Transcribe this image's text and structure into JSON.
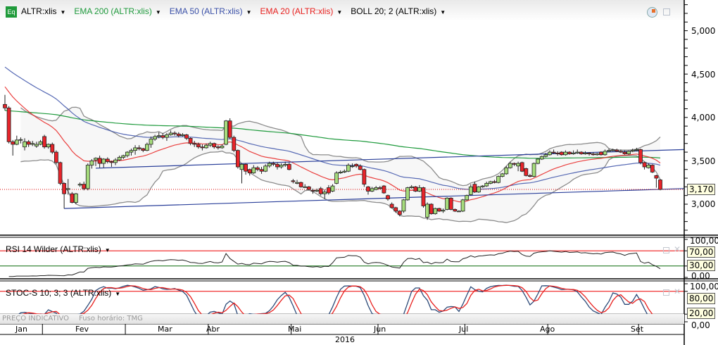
{
  "legend": {
    "symbol": "ALTR:xlis",
    "symbol_icon": "Eq",
    "ema200": "EMA 200 (ALTR:xlis)",
    "ema50": "EMA 50 (ALTR:xlis)",
    "ema20": "EMA 20 (ALTR:xlis)",
    "boll": "BOLL 20; 2 (ALTR:xlis)"
  },
  "colors": {
    "ema200": "#1e9a3c",
    "ema50": "#3a50a8",
    "ema20": "#e8201e",
    "boll": "#8c8c8c",
    "up": "#a6dc7c",
    "down": "#e8242a",
    "trendline": "#2a3f9a",
    "stoch_k": "#2c4a78",
    "stoch_d": "#e8201e"
  },
  "icons": {
    "top_right": [
      "clock-icon",
      "restore-window-icon"
    ],
    "panel": [
      "restore-window-icon",
      "close-icon"
    ]
  },
  "price_axis": {
    "labels": [
      "5,000",
      "4,500",
      "4,000",
      "3,500",
      "3,000"
    ],
    "last_price": "3,170"
  },
  "rsi": {
    "title": "RSI 14 Wilder (ALTR:xlis)",
    "axis": [
      "100,00",
      "70,00",
      "30,00",
      "0,00"
    ]
  },
  "stoch": {
    "title": "STOC-S 10; 3; 3 (ALTR:xlis)",
    "axis": [
      "100,00",
      "80,00",
      "20,00",
      "0,00"
    ]
  },
  "footer": {
    "indicative": "PREÇO INDICATIVO",
    "timezone": "Fuso horário: TMG"
  },
  "x_axis": {
    "months": [
      "Jan",
      "Fev",
      "Mar",
      "Abr",
      "Mai",
      "Jun",
      "Jul",
      "Ago",
      "Set"
    ],
    "year": "2016"
  },
  "chart_data": {
    "type": "candlestick",
    "title": "",
    "y_range": [
      2650,
      5300
    ],
    "month_candle_counts": [
      10,
      21,
      21,
      21,
      22,
      22,
      21,
      23,
      6
    ],
    "last": 3170,
    "indicator_start": {
      "ema20": 4380,
      "ema50": 4600,
      "ema200": 4080
    },
    "trendlines": [
      {
        "from_index": 23,
        "from_price": 3415,
        "to_price_at_right": 3630
      },
      {
        "from_index": 15,
        "from_price": 2950,
        "to_price_at_right": 3180
      }
    ],
    "rsi_levels": [
      70,
      30
    ],
    "stoch_levels": [
      80,
      20
    ],
    "candles": [
      [
        4150,
        4260,
        4080,
        4110
      ],
      [
        4110,
        4130,
        3700,
        3720
      ],
      [
        3720,
        3740,
        3560,
        3690
      ],
      [
        3690,
        3790,
        3680,
        3740
      ],
      [
        3740,
        3770,
        3700,
        3745
      ],
      [
        3660,
        3760,
        3620,
        3720
      ],
      [
        3720,
        3740,
        3660,
        3690
      ],
      [
        3690,
        3730,
        3670,
        3700
      ],
      [
        3670,
        3720,
        3650,
        3690
      ],
      [
        3690,
        3740,
        3680,
        3720
      ],
      [
        3780,
        3800,
        3640,
        3660
      ],
      [
        3660,
        3700,
        3640,
        3690
      ],
      [
        3690,
        3710,
        3580,
        3600
      ],
      [
        3600,
        3620,
        3460,
        3480
      ],
      [
        3480,
        3490,
        3220,
        3240
      ],
      [
        3240,
        3250,
        2950,
        3120
      ],
      [
        3170,
        3290,
        3110,
        3180
      ],
      [
        3120,
        3140,
        3010,
        3020
      ],
      [
        3020,
        3130,
        3000,
        3120
      ],
      [
        3220,
        3250,
        3200,
        3230
      ],
      [
        3230,
        3260,
        3160,
        3180
      ],
      [
        3180,
        3470,
        3160,
        3450
      ],
      [
        3450,
        3520,
        3410,
        3500
      ],
      [
        3510,
        3540,
        3440,
        3530
      ],
      [
        3530,
        3560,
        3420,
        3470
      ],
      [
        3470,
        3530,
        3420,
        3520
      ],
      [
        3520,
        3540,
        3470,
        3490
      ],
      [
        3490,
        3500,
        3430,
        3480
      ],
      [
        3480,
        3530,
        3450,
        3510
      ],
      [
        3510,
        3560,
        3500,
        3540
      ],
      [
        3540,
        3570,
        3520,
        3560
      ],
      [
        3560,
        3610,
        3540,
        3600
      ],
      [
        3600,
        3640,
        3560,
        3620
      ],
      [
        3620,
        3680,
        3570,
        3650
      ],
      [
        3650,
        3680,
        3620,
        3640
      ],
      [
        3640,
        3650,
        3600,
        3620
      ],
      [
        3620,
        3710,
        3610,
        3690
      ],
      [
        3690,
        3780,
        3650,
        3750
      ],
      [
        3750,
        3800,
        3730,
        3780
      ],
      [
        3780,
        3830,
        3760,
        3790
      ],
      [
        3790,
        3820,
        3750,
        3770
      ],
      [
        3770,
        3820,
        3730,
        3800
      ],
      [
        3800,
        3850,
        3790,
        3820
      ],
      [
        3820,
        3840,
        3790,
        3810
      ],
      [
        3810,
        3830,
        3770,
        3790
      ],
      [
        3790,
        3820,
        3780,
        3800
      ],
      [
        3800,
        3810,
        3740,
        3760
      ],
      [
        3760,
        3770,
        3680,
        3700
      ],
      [
        3700,
        3730,
        3660,
        3690
      ],
      [
        3690,
        3710,
        3640,
        3660
      ],
      [
        3660,
        3690,
        3620,
        3650
      ],
      [
        3650,
        3700,
        3640,
        3680
      ],
      [
        3680,
        3720,
        3660,
        3700
      ],
      [
        3700,
        3710,
        3640,
        3660
      ],
      [
        3660,
        3680,
        3630,
        3650
      ],
      [
        3650,
        3690,
        3640,
        3670
      ],
      [
        3690,
        3970,
        3680,
        3960
      ],
      [
        3960,
        3990,
        3750,
        3770
      ],
      [
        3770,
        3790,
        3600,
        3620
      ],
      [
        3620,
        3630,
        3410,
        3430
      ],
      [
        3400,
        3470,
        3240,
        3460
      ],
      [
        3460,
        3470,
        3340,
        3380
      ],
      [
        3400,
        3410,
        3330,
        3360
      ],
      [
        3360,
        3450,
        3350,
        3420
      ],
      [
        3420,
        3440,
        3380,
        3400
      ],
      [
        3400,
        3430,
        3350,
        3380
      ],
      [
        3380,
        3460,
        3370,
        3440
      ],
      [
        3440,
        3490,
        3420,
        3470
      ],
      [
        3470,
        3490,
        3440,
        3460
      ],
      [
        3460,
        3480,
        3400,
        3430
      ],
      [
        3430,
        3470,
        3410,
        3450
      ],
      [
        3450,
        3490,
        3430,
        3460
      ],
      [
        3460,
        3480,
        3390,
        3400
      ],
      [
        3270,
        3290,
        3240,
        3260
      ],
      [
        3240,
        3280,
        3230,
        3250
      ],
      [
        3250,
        3260,
        3190,
        3200
      ],
      [
        3200,
        3230,
        3190,
        3200
      ],
      [
        3200,
        3210,
        3160,
        3170
      ],
      [
        3160,
        3180,
        3120,
        3150
      ],
      [
        3150,
        3180,
        3140,
        3160
      ],
      [
        3180,
        3200,
        3100,
        3120
      ],
      [
        3120,
        3170,
        3060,
        3140
      ],
      [
        3190,
        3220,
        3110,
        3130
      ],
      [
        3150,
        3230,
        3140,
        3210
      ],
      [
        3240,
        3380,
        3230,
        3360
      ],
      [
        3360,
        3390,
        3350,
        3370
      ],
      [
        3370,
        3400,
        3360,
        3380
      ],
      [
        3380,
        3470,
        3370,
        3450
      ],
      [
        3440,
        3470,
        3420,
        3440
      ],
      [
        3460,
        3470,
        3420,
        3440
      ],
      [
        3440,
        3460,
        3390,
        3400
      ],
      [
        3400,
        3410,
        3200,
        3230
      ],
      [
        3200,
        3210,
        3110,
        3150
      ],
      [
        3150,
        3200,
        3140,
        3180
      ],
      [
        3170,
        3210,
        3160,
        3190
      ],
      [
        3190,
        3210,
        3170,
        3180
      ],
      [
        3210,
        3220,
        3120,
        3130
      ],
      [
        3100,
        3110,
        3040,
        3060
      ],
      [
        3000,
        3020,
        2950,
        2960
      ],
      [
        2960,
        2970,
        2900,
        2920
      ],
      [
        2920,
        2930,
        2860,
        2880
      ],
      [
        2920,
        3060,
        2900,
        3050
      ],
      [
        3050,
        3200,
        3040,
        3190
      ],
      [
        3190,
        3220,
        3180,
        3200
      ],
      [
        3200,
        3210,
        3140,
        3150
      ],
      [
        3150,
        3220,
        3140,
        3190
      ],
      [
        3190,
        3200,
        2960,
        2980
      ],
      [
        2850,
        3020,
        2820,
        3000
      ],
      [
        3000,
        3010,
        2880,
        2890
      ],
      [
        2890,
        2960,
        2880,
        2950
      ],
      [
        2950,
        2960,
        2910,
        2920
      ],
      [
        2920,
        2950,
        2900,
        2930
      ],
      [
        2940,
        3080,
        2930,
        3070
      ],
      [
        3070,
        3080,
        2930,
        2940
      ],
      [
        2940,
        2950,
        2910,
        2920
      ],
      [
        2920,
        2930,
        2910,
        2920
      ],
      [
        2920,
        3060,
        2910,
        3050
      ],
      [
        3050,
        3110,
        3040,
        3100
      ],
      [
        3110,
        3230,
        3100,
        3200
      ],
      [
        3230,
        3260,
        3130,
        3140
      ],
      [
        3140,
        3210,
        3130,
        3200
      ],
      [
        3200,
        3220,
        3190,
        3210
      ],
      [
        3210,
        3260,
        3200,
        3240
      ],
      [
        3240,
        3270,
        3230,
        3260
      ],
      [
        3260,
        3280,
        3240,
        3250
      ],
      [
        3250,
        3330,
        3240,
        3320
      ],
      [
        3320,
        3360,
        3310,
        3350
      ],
      [
        3350,
        3440,
        3340,
        3420
      ],
      [
        3420,
        3490,
        3410,
        3470
      ],
      [
        3470,
        3480,
        3440,
        3460
      ],
      [
        3440,
        3490,
        3380,
        3470
      ],
      [
        3480,
        3490,
        3370,
        3380
      ],
      [
        3410,
        3420,
        3320,
        3330
      ],
      [
        3330,
        3350,
        3310,
        3320
      ],
      [
        3320,
        3480,
        3310,
        3470
      ],
      [
        3470,
        3530,
        3460,
        3520
      ],
      [
        3520,
        3560,
        3510,
        3550
      ],
      [
        3550,
        3590,
        3540,
        3570
      ],
      [
        3570,
        3620,
        3560,
        3600
      ],
      [
        3600,
        3630,
        3580,
        3590
      ],
      [
        3590,
        3610,
        3560,
        3580
      ],
      [
        3600,
        3610,
        3560,
        3570
      ],
      [
        3570,
        3620,
        3560,
        3600
      ],
      [
        3600,
        3610,
        3570,
        3580
      ],
      [
        3580,
        3620,
        3570,
        3590
      ],
      [
        3590,
        3630,
        3580,
        3600
      ],
      [
        3600,
        3610,
        3570,
        3580
      ],
      [
        3580,
        3610,
        3570,
        3590
      ],
      [
        3590,
        3600,
        3560,
        3580
      ],
      [
        3580,
        3600,
        3560,
        3570
      ],
      [
        3570,
        3590,
        3560,
        3580
      ],
      [
        3600,
        3610,
        3560,
        3570
      ],
      [
        3570,
        3630,
        3560,
        3610
      ],
      [
        3610,
        3640,
        3600,
        3620
      ],
      [
        3620,
        3640,
        3610,
        3625
      ],
      [
        3625,
        3640,
        3600,
        3610
      ],
      [
        3610,
        3630,
        3590,
        3600
      ],
      [
        3600,
        3620,
        3570,
        3580
      ],
      [
        3580,
        3620,
        3570,
        3610
      ],
      [
        3610,
        3640,
        3600,
        3620
      ],
      [
        3620,
        3650,
        3610,
        3630
      ],
      [
        3630,
        3640,
        3460,
        3480
      ],
      [
        3480,
        3490,
        3400,
        3430
      ],
      [
        3420,
        3470,
        3410,
        3450
      ],
      [
        3450,
        3460,
        3360,
        3370
      ],
      [
        3330,
        3340,
        3190,
        3300
      ],
      [
        3280,
        3290,
        3160,
        3170
      ]
    ]
  }
}
